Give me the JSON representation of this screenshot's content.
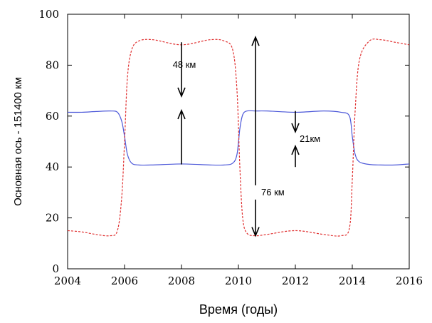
{
  "chart_data": {
    "type": "line",
    "xlabel": "Время (годы)",
    "ylabel": "Основная ось - 151400 км",
    "xlim": [
      2004,
      2016
    ],
    "ylim": [
      0,
      100
    ],
    "xticks": [
      "2004",
      "2006",
      "2008",
      "2010",
      "2012",
      "2014",
      "2016"
    ],
    "yticks": [
      "0",
      "20",
      "40",
      "60",
      "80",
      "100"
    ],
    "grid": false,
    "series": [
      {
        "color": "#4a56d8",
        "style": "solid",
        "x": [
          2004,
          2004.5,
          2005,
          2005.5,
          2005.75,
          2005.9,
          2006,
          2006.1,
          2006.25,
          2006.5,
          2007,
          2008,
          2009,
          2009.5,
          2009.8,
          2009.95,
          2010.05,
          2010.15,
          2010.3,
          2010.6,
          2011,
          2012,
          2013,
          2013.6,
          2013.9,
          2014,
          2014.1,
          2014.25,
          2014.6,
          2015,
          2015.5,
          2016
        ],
        "y": [
          61.5,
          61.5,
          61.8,
          62,
          61.5,
          58,
          52,
          45,
          41.5,
          40.8,
          40.8,
          41.2,
          40.8,
          40.8,
          41.5,
          45,
          55,
          60.5,
          62,
          62,
          62,
          61.5,
          62,
          61.5,
          60,
          52,
          45,
          42,
          41,
          40.8,
          40.8,
          41.2
        ]
      },
      {
        "color": "#e03030",
        "style": "dashed",
        "x": [
          2004,
          2004.5,
          2005,
          2005.5,
          2005.75,
          2005.9,
          2006,
          2006.1,
          2006.25,
          2006.5,
          2007,
          2008,
          2009,
          2009.5,
          2009.8,
          2009.95,
          2010.05,
          2010.15,
          2010.3,
          2010.6,
          2011,
          2012,
          2013,
          2013.6,
          2013.9,
          2014,
          2014.1,
          2014.25,
          2014.6,
          2015,
          2015.5,
          2016
        ],
        "y": [
          15,
          14.5,
          13.5,
          13,
          15,
          28,
          50,
          75,
          86,
          89.5,
          90,
          88,
          90,
          89.5,
          86,
          70,
          40,
          20,
          14,
          13,
          13.5,
          15,
          13.5,
          13,
          16,
          35,
          62,
          82,
          89.5,
          90,
          89,
          88
        ]
      }
    ],
    "annotations": [
      {
        "label": "48 км",
        "x": 2008,
        "y_from": 41,
        "y_to": 89,
        "label_y": 65
      },
      {
        "label": "76 км",
        "x": 2010.6,
        "y_from": 13,
        "y_to": 91,
        "label_y": 30
      },
      {
        "label": "21км",
        "x": 2012,
        "y_from": 40,
        "y_to": 62,
        "label_y": 51
      }
    ]
  }
}
